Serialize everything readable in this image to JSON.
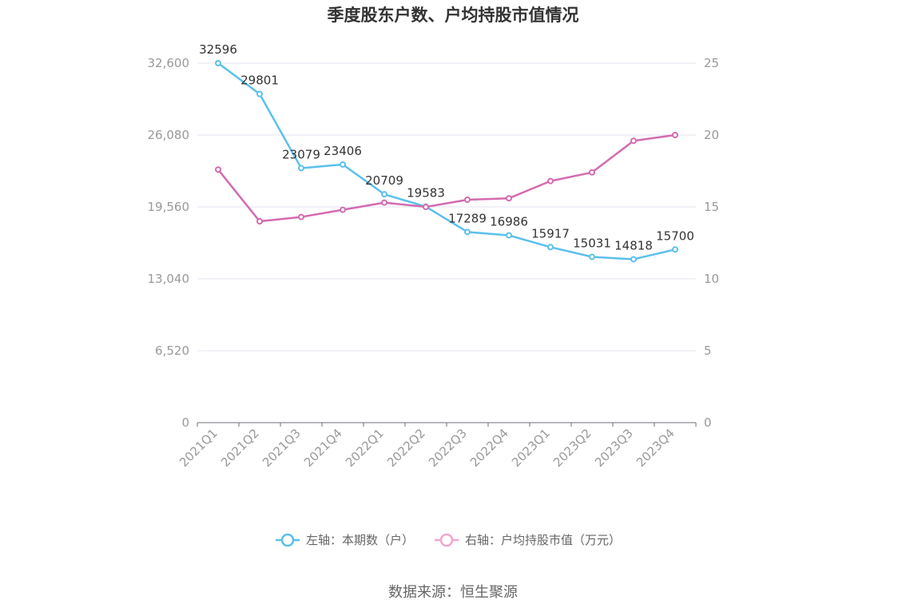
{
  "chart_data": {
    "type": "line",
    "title": "季度股东户数、户均持股市值情况",
    "categories": [
      "2021Q1",
      "2021Q2",
      "2021Q3",
      "2021Q4",
      "2022Q1",
      "2022Q2",
      "2022Q3",
      "2022Q4",
      "2023Q1",
      "2023Q2",
      "2023Q3",
      "2023Q4"
    ],
    "left_axis": {
      "ylim": [
        0,
        32600
      ],
      "ticks": [
        0,
        6520,
        13040,
        19560,
        26080,
        32600
      ],
      "tick_labels": [
        "0",
        "6,520",
        "13,040",
        "19,560",
        "26,080",
        "32,600"
      ]
    },
    "right_axis": {
      "ylim": [
        0,
        25
      ],
      "ticks": [
        0,
        5,
        10,
        15,
        20,
        25
      ],
      "tick_labels": [
        "0",
        "5",
        "10",
        "15",
        "20",
        "25"
      ]
    },
    "series": [
      {
        "name": "左轴：本期数（户）",
        "axis": "left",
        "color": "#5bc0eb",
        "values": [
          32596,
          29801,
          23079,
          23406,
          20709,
          19583,
          17289,
          16986,
          15917,
          15031,
          14818,
          15700
        ],
        "labels": [
          "32596",
          "29801",
          "23079",
          "23406",
          "20709",
          "19583",
          "17289",
          "16986",
          "15917",
          "15031",
          "14818",
          "15700"
        ]
      },
      {
        "name": "右轴：户均持股市值（万元）",
        "axis": "right",
        "color": "#d36bb0",
        "values": [
          17.6,
          14.0,
          14.3,
          14.8,
          15.3,
          15.0,
          15.5,
          15.6,
          16.8,
          17.4,
          19.6,
          20.0
        ]
      }
    ],
    "grid": true,
    "legend_position": "bottom"
  },
  "source_text": "数据来源：恒生聚源"
}
